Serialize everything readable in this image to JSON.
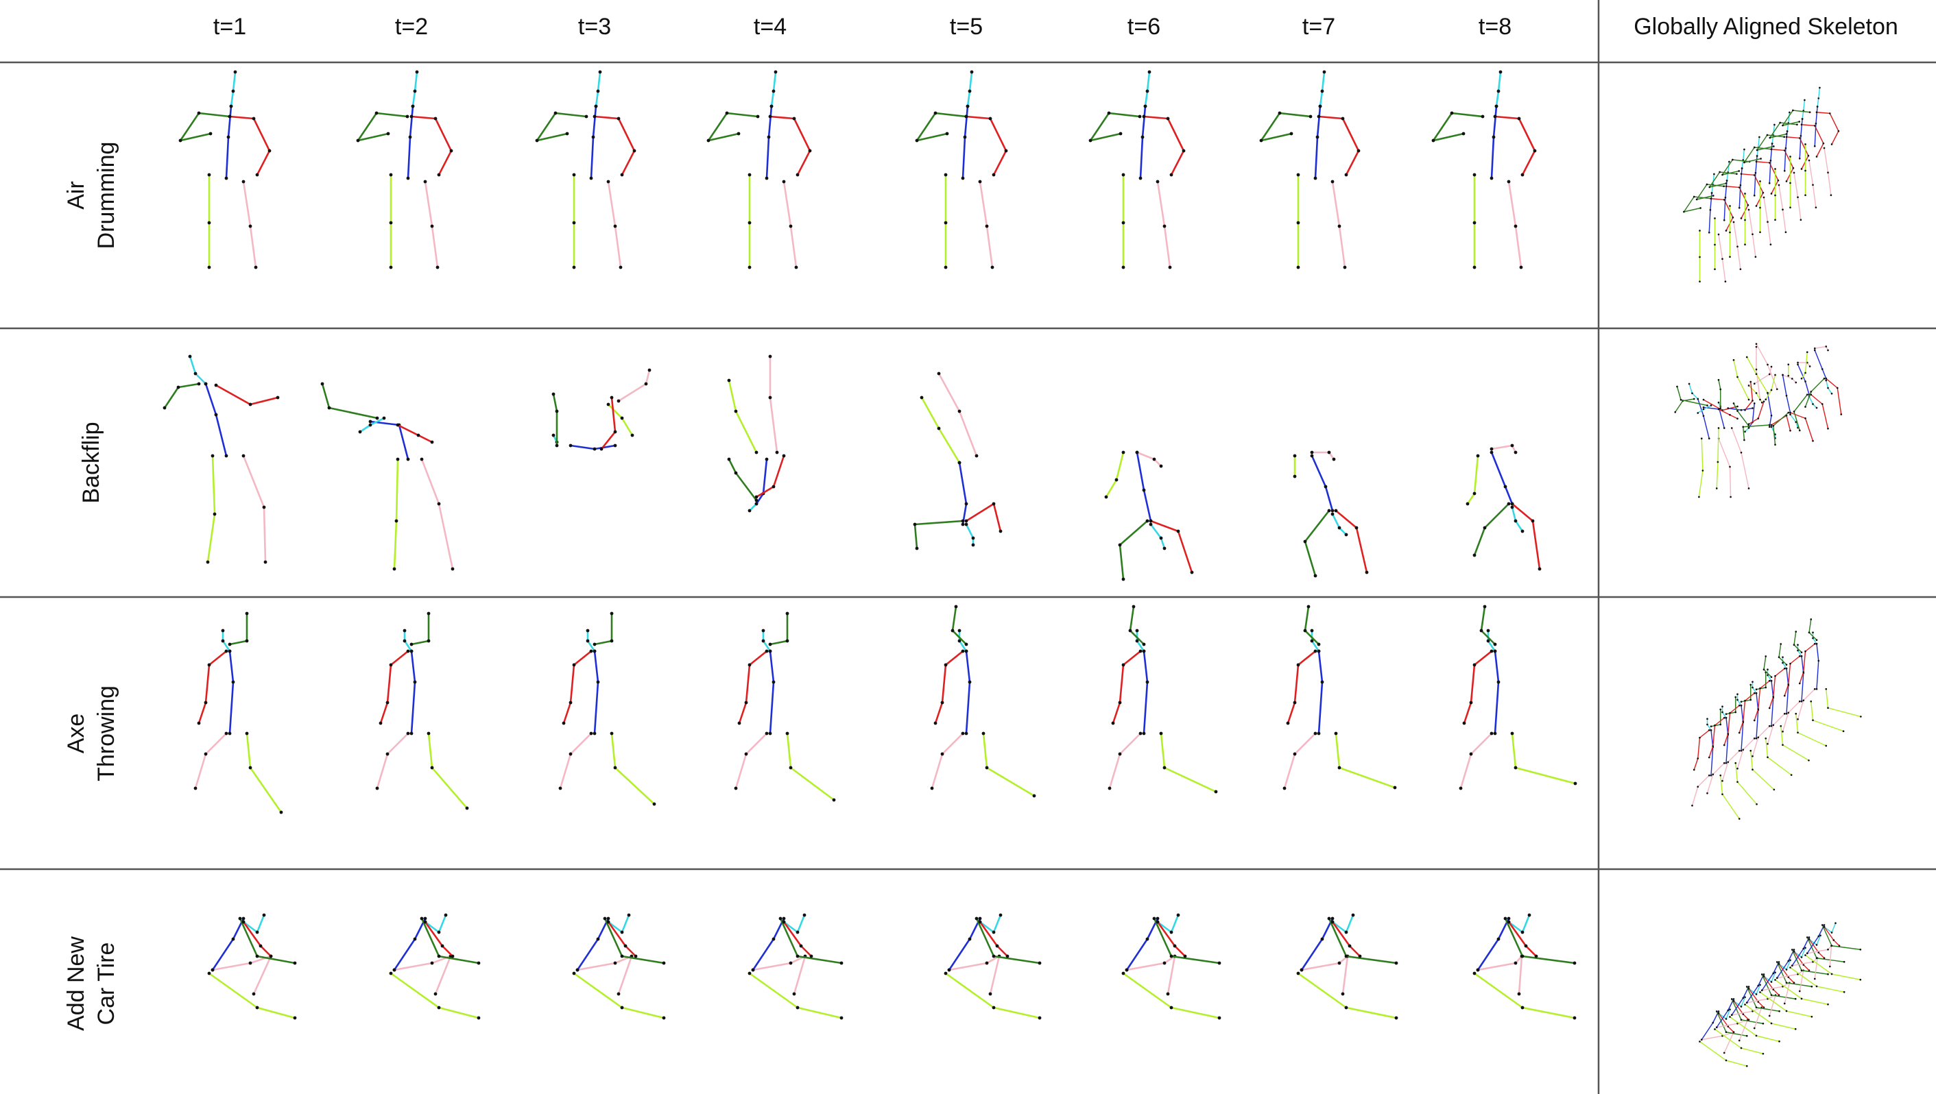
{
  "header": {
    "time_steps": [
      "t=1",
      "t=2",
      "t=3",
      "t=4",
      "t=5",
      "t=6",
      "t=7",
      "t=8"
    ],
    "aligned_column": "Globally Aligned Skeleton"
  },
  "rows": [
    {
      "lines": [
        "Air",
        "Drumming"
      ],
      "style": "upright"
    },
    {
      "lines": [
        "Backflip"
      ],
      "style": "backflip"
    },
    {
      "lines": [
        "Axe",
        "Throwing"
      ],
      "style": "axe"
    },
    {
      "lines": [
        "Add New",
        "Car Tire"
      ],
      "style": "tire"
    }
  ],
  "colors": {
    "spine": "#1f2fd6",
    "head": "#35d8e6",
    "left_arm": "#2e7d1e",
    "right_arm": "#e02020",
    "left_leg": "#b4f02a",
    "right_leg": "#f4b8c4",
    "joint": "#111111",
    "rule": "#555555"
  }
}
